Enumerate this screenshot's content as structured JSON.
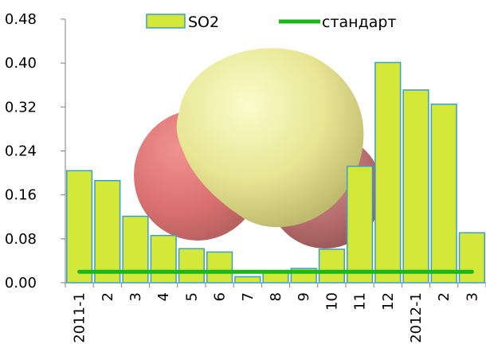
{
  "chart_data": {
    "type": "bar",
    "categories": [
      "2011-1",
      "2",
      "3",
      "4",
      "5",
      "6",
      "7",
      "8",
      "9",
      "10",
      "11",
      "12",
      "2012-1",
      "2",
      "3"
    ],
    "series": [
      {
        "name": "SO2",
        "type": "bar",
        "values": [
          0.204,
          0.186,
          0.121,
          0.086,
          0.062,
          0.056,
          0.011,
          0.02,
          0.026,
          0.061,
          0.212,
          0.401,
          0.351,
          0.325,
          0.091
        ],
        "color": "#d4e83a",
        "edge_color": "#3aa0c8"
      },
      {
        "name": "стандарт",
        "type": "line",
        "values": [
          0.02,
          0.02,
          0.02,
          0.02,
          0.02,
          0.02,
          0.02,
          0.02,
          0.02,
          0.02,
          0.02,
          0.02,
          0.02,
          0.02,
          0.02
        ],
        "color": "#18b818"
      }
    ],
    "y_ticks": [
      "0.00",
      "0.08",
      "0.16",
      "0.24",
      "0.32",
      "0.40",
      "0.48"
    ],
    "ylim": [
      0,
      0.48
    ],
    "grid": false,
    "legend_position": "top",
    "background_image": "so2-molecule-model"
  }
}
